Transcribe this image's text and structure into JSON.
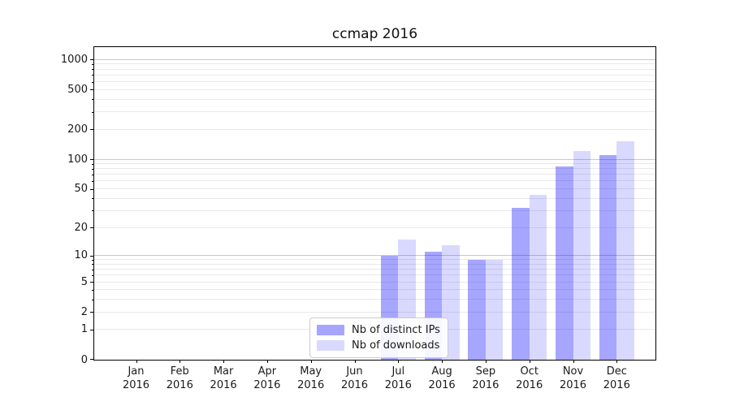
{
  "chart_data": {
    "type": "bar",
    "title": "ccmap 2016",
    "year": "2016",
    "categories": [
      "Jan",
      "Feb",
      "Mar",
      "Apr",
      "May",
      "Jun",
      "Jul",
      "Aug",
      "Sep",
      "Oct",
      "Nov",
      "Dec"
    ],
    "series": [
      {
        "name": "Nb of distinct IPs",
        "color": "rgba(0,0,255,0.35)",
        "values": [
          0,
          0,
          0,
          0,
          0,
          0,
          10,
          11,
          9,
          32,
          85,
          110
        ]
      },
      {
        "name": "Nb of downloads",
        "color": "rgba(0,0,255,0.15)",
        "values": [
          0,
          0,
          0,
          0,
          0,
          0,
          15,
          13,
          9,
          43,
          120,
          150
        ]
      }
    ],
    "yscale": "log1p",
    "ylim": [
      0,
      1330
    ],
    "y_ticks": [
      0,
      1,
      2,
      5,
      10,
      20,
      50,
      100,
      200,
      500,
      1000
    ],
    "grid_minor": [
      1,
      2,
      3,
      4,
      5,
      6,
      7,
      8,
      9,
      20,
      30,
      40,
      50,
      60,
      70,
      80,
      90,
      200,
      300,
      400,
      500,
      600,
      700,
      800,
      900
    ],
    "grid_major": [
      10,
      100,
      1000
    ],
    "grid": true,
    "legend_position": "lower-center",
    "colors": {
      "grid_minor": "#e9e9e9",
      "grid_major": "#c9c9c9",
      "spine": "#000000",
      "text": "#1a1a1a"
    }
  }
}
